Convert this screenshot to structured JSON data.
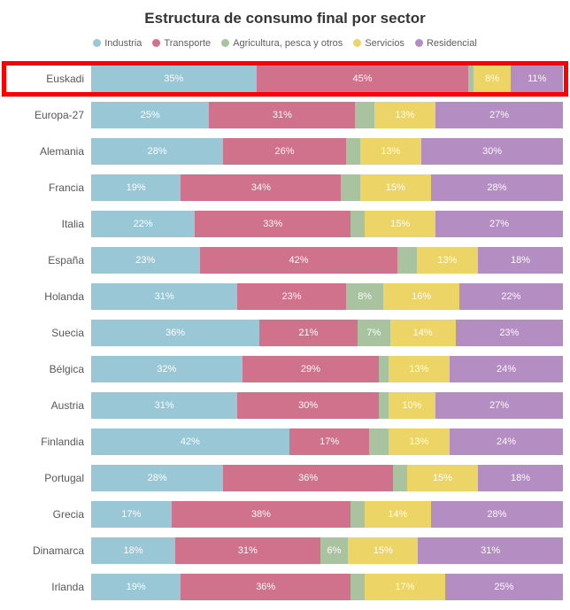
{
  "title": "Estructura de consumo final por sector",
  "accent_colors": {
    "industria_blue": "#9AC7D6",
    "transporte_pink": "#D1728C",
    "agricultura_green": "#A9C2A0",
    "servicios_yellow": "#EDD466",
    "residencial_purple": "#B48DC2",
    "highlight_red": "#FE0000",
    "label_gray": "#575757",
    "title_gray": "#353535"
  },
  "chart_data": {
    "type": "bar",
    "orientation": "horizontal",
    "stacked": true,
    "unit": "%",
    "title": "Estructura de consumo final por sector",
    "legend_position": "top",
    "grid": false,
    "label_min_value": 6,
    "categories": [
      "Euskadi",
      "Europa-27",
      "Alemania",
      "Francia",
      "Italia",
      "España",
      "Holanda",
      "Suecia",
      "Bélgica",
      "Austria",
      "Finlandia",
      "Portugal",
      "Grecia",
      "Dinamarca",
      "Irlanda"
    ],
    "series": [
      {
        "name": "Industria",
        "color": "#9AC7D6",
        "values": [
          35,
          25,
          28,
          19,
          22,
          23,
          31,
          36,
          32,
          31,
          42,
          28,
          17,
          18,
          19
        ]
      },
      {
        "name": "Transporte",
        "color": "#D1728C",
        "values": [
          45,
          31,
          26,
          34,
          33,
          42,
          23,
          21,
          29,
          30,
          17,
          36,
          38,
          31,
          36
        ]
      },
      {
        "name": "Agricultura, pesca y otros",
        "color": "#A9C2A0",
        "values": [
          1,
          4,
          3,
          4,
          3,
          4,
          8,
          7,
          2,
          2,
          4,
          3,
          3,
          6,
          3
        ]
      },
      {
        "name": "Servicios",
        "color": "#EDD466",
        "values": [
          8,
          13,
          13,
          15,
          15,
          13,
          16,
          14,
          13,
          10,
          13,
          15,
          14,
          15,
          17
        ]
      },
      {
        "name": "Residencial",
        "color": "#B48DC2",
        "values": [
          11,
          27,
          30,
          28,
          27,
          18,
          22,
          23,
          24,
          27,
          24,
          18,
          28,
          31,
          25
        ]
      }
    ],
    "annotations": [
      {
        "type": "highlight-box",
        "category": "Euskadi",
        "color": "#FE0000"
      }
    ]
  }
}
